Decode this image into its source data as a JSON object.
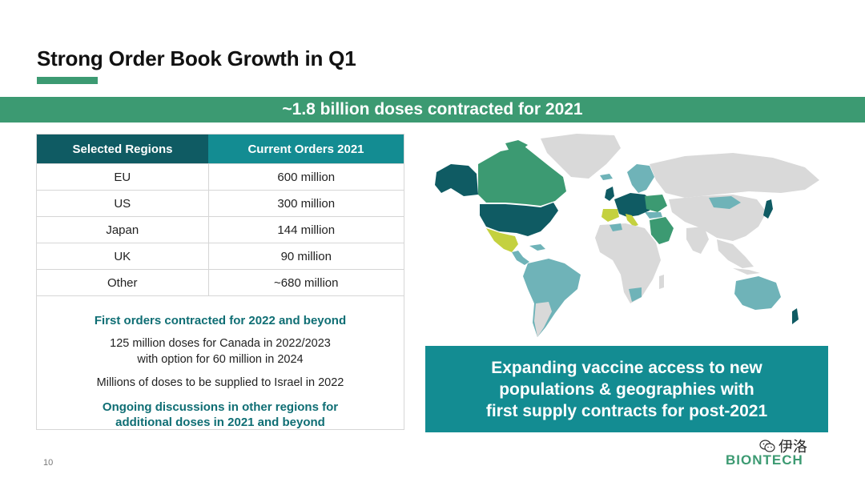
{
  "slide": {
    "title": "Strong Order Book Growth in Q1",
    "banner": "~1.8 billion doses contracted for 2021",
    "page_number": "10"
  },
  "table": {
    "headers": [
      "Selected Regions",
      "Current Orders 2021"
    ],
    "rows": [
      {
        "region": "EU",
        "orders": "600 million"
      },
      {
        "region": "US",
        "orders": "300 million"
      },
      {
        "region": "Japan",
        "orders": "144 million"
      },
      {
        "region": "UK",
        "orders": "90 million"
      },
      {
        "region": "Other",
        "orders": "~680 million"
      }
    ]
  },
  "notes": {
    "heading": "First orders contracted for 2022 and beyond",
    "canada_line1": "125 million doses for Canada in 2022/2023",
    "canada_line2": "with option for 60 million in 2024",
    "israel": "Millions of doses to be supplied to Israel in 2022",
    "ongoing_line1": "Ongoing discussions in other regions for",
    "ongoing_line2": "additional doses in 2021 and beyond"
  },
  "callout": {
    "line1": "Expanding vaccine access to new",
    "line2": "populations & geographies with",
    "line3": "first supply contracts for post-2021"
  },
  "footer": {
    "logo_text": "BIONTECH",
    "watermark_text": "伊洛"
  },
  "colors": {
    "green": "#3c9a72",
    "dark_teal": "#0f5b63",
    "teal": "#138c92",
    "light_teal": "#6fb3b8",
    "lime": "#c4d13f",
    "grey": "#d9d9d9"
  },
  "icons": [
    "world-map",
    "wechat-icon"
  ]
}
